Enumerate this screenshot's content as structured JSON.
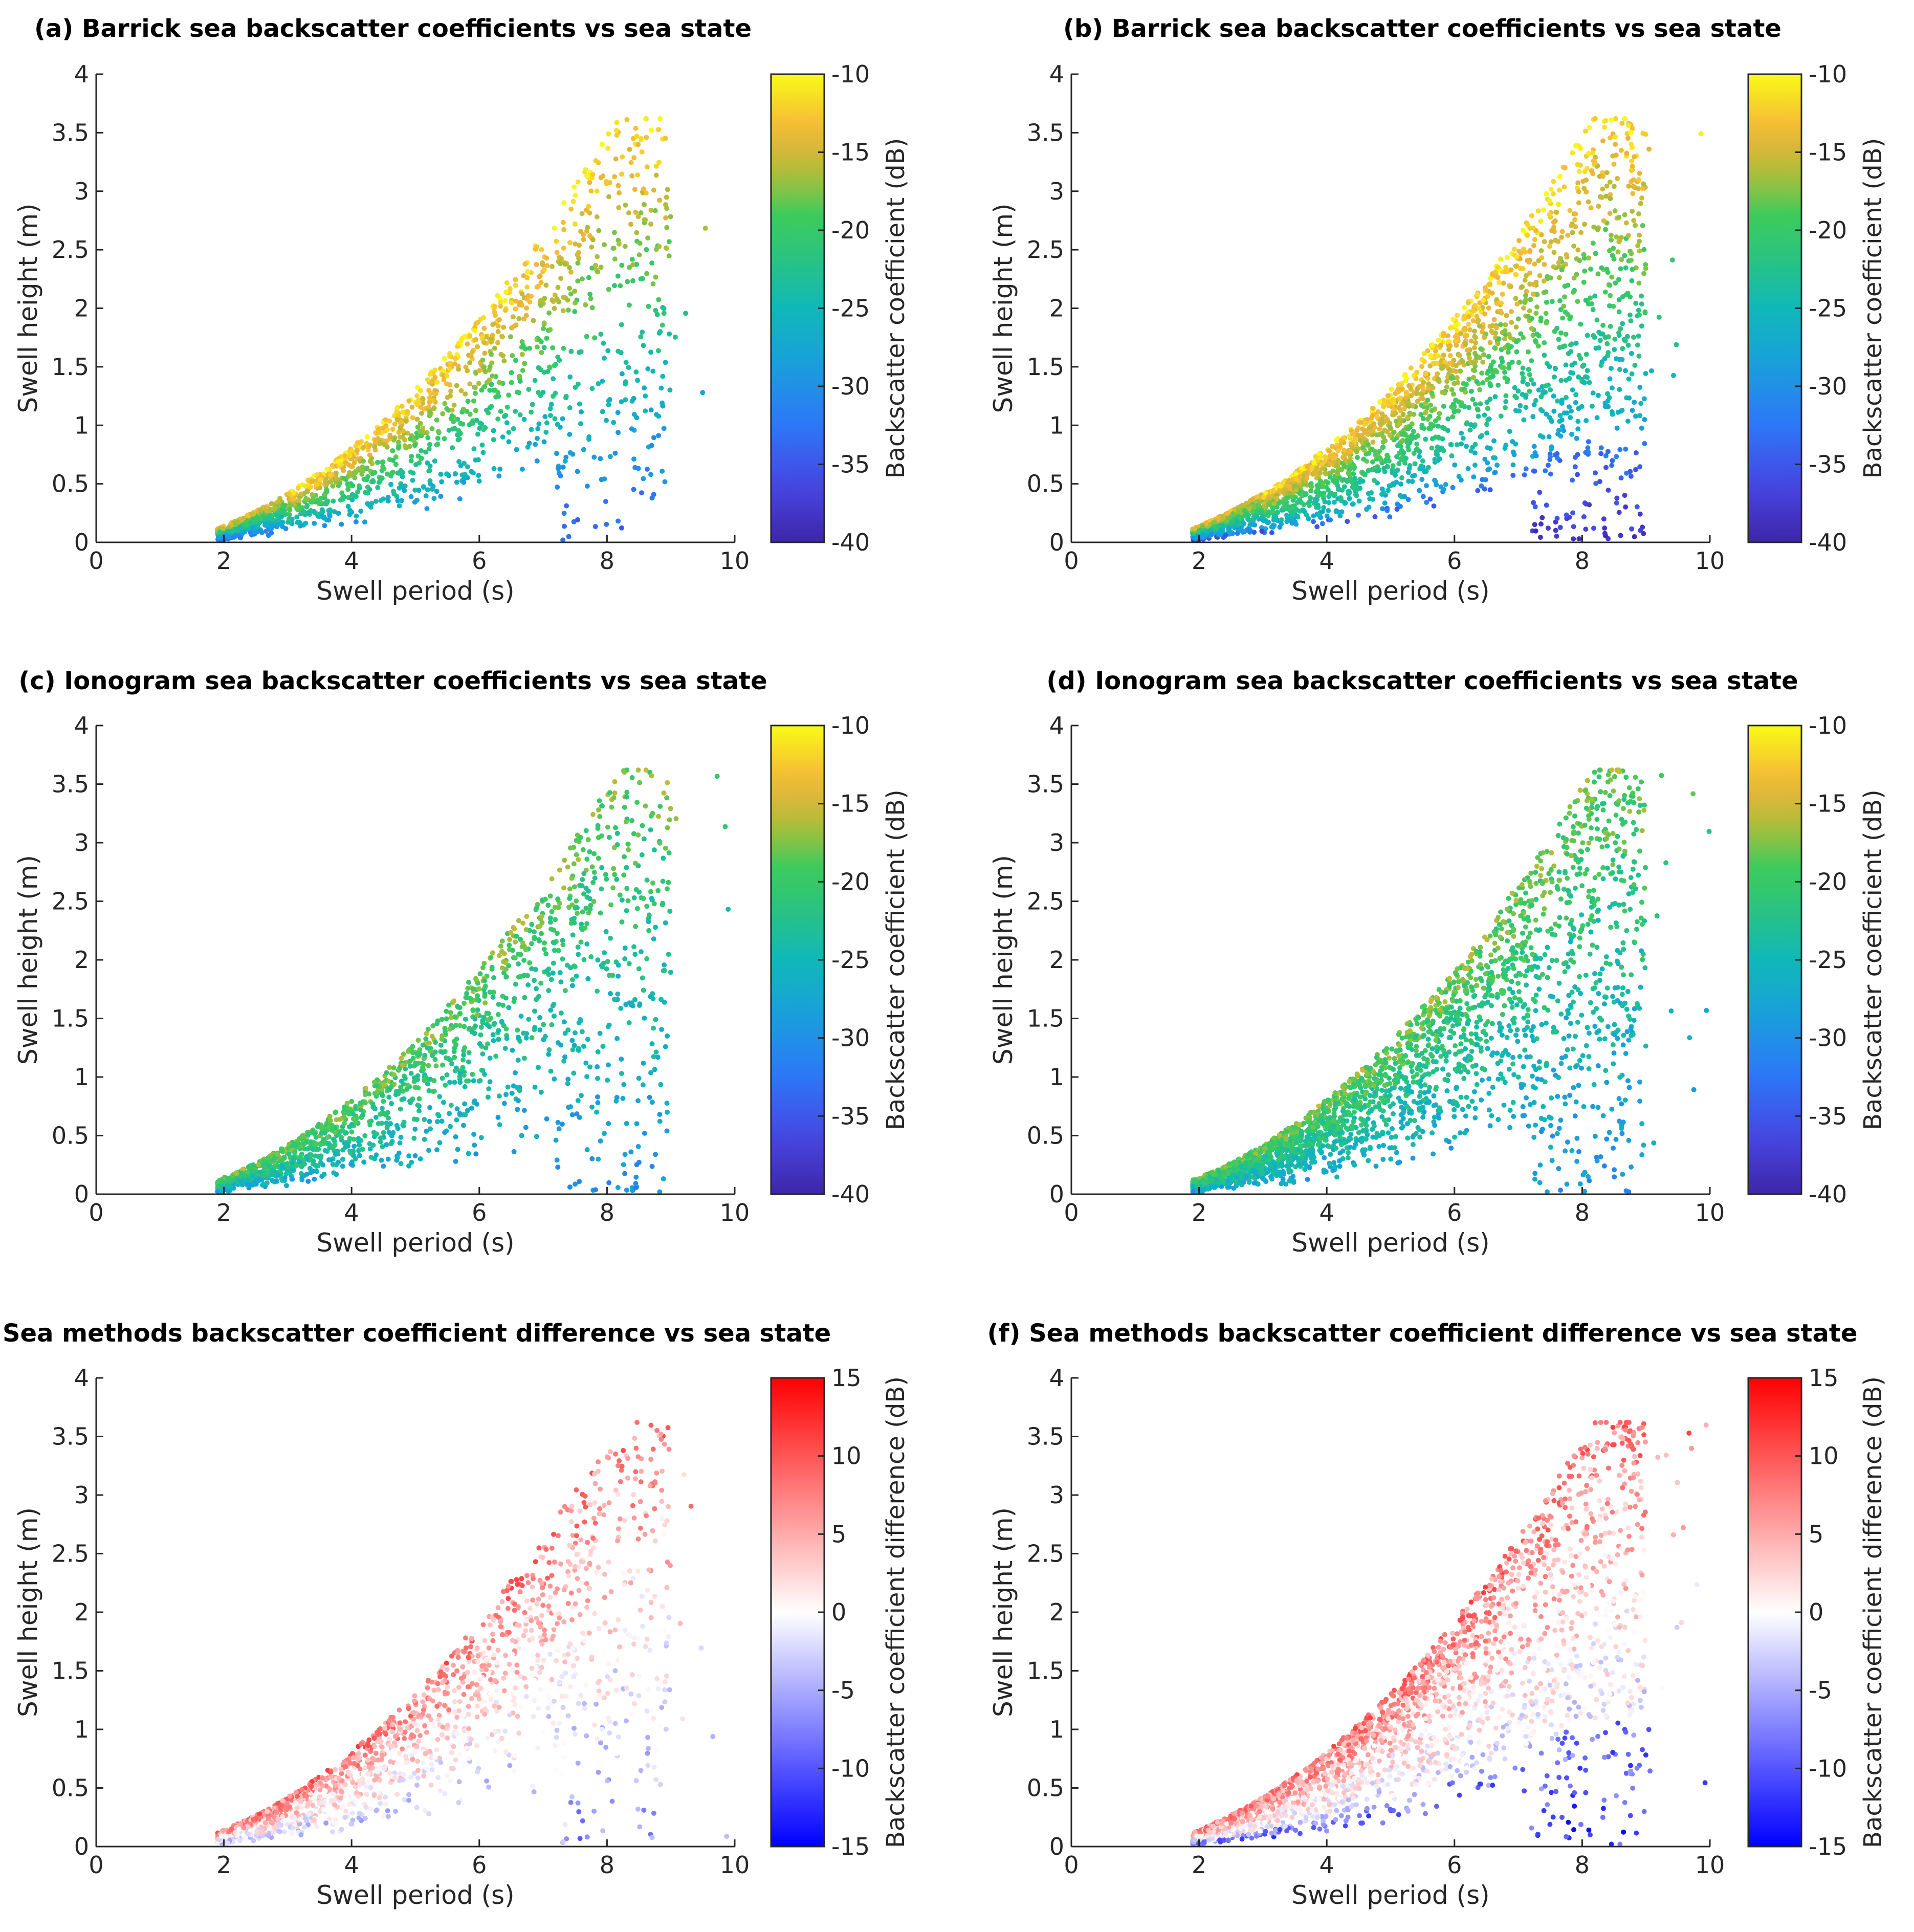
{
  "figure": {
    "xlabel": "Swell period (s)",
    "ylabel": "Swell height (m)"
  },
  "chart_data": [
    {
      "id": "a",
      "type": "scatter",
      "title": "(a) Barrick sea backscatter coefficients vs sea state",
      "xlabel": "Swell period (s)",
      "ylabel": "Swell height (m)",
      "xlim": [
        0,
        10
      ],
      "ylim": [
        0,
        4
      ],
      "xticks": [
        "0",
        "2",
        "4",
        "6",
        "8",
        "10"
      ],
      "yticks": [
        "0",
        "0.5",
        "1",
        "1.5",
        "2",
        "2.5",
        "3",
        "3.5",
        "4"
      ],
      "colorbar": {
        "label": "Backscatter coefficient (dB)",
        "range": [
          -40,
          -10
        ],
        "ticks": [
          "-10",
          "-15",
          "-20",
          "-25",
          "-30",
          "-35",
          "-40"
        ],
        "colormap": "parula"
      },
      "color_model": "barrick_sparse",
      "points": 1600
    },
    {
      "id": "b",
      "type": "scatter",
      "title": "(b) Barrick sea backscatter coefficients vs sea state",
      "xlabel": "Swell period (s)",
      "ylabel": "Swell height (m)",
      "xlim": [
        0,
        10
      ],
      "ylim": [
        0,
        4
      ],
      "xticks": [
        "0",
        "2",
        "4",
        "6",
        "8",
        "10"
      ],
      "yticks": [
        "0",
        "0.5",
        "1",
        "1.5",
        "2",
        "2.5",
        "3",
        "3.5",
        "4"
      ],
      "colorbar": {
        "label": "Backscatter coefficient (dB)",
        "range": [
          -40,
          -10
        ],
        "ticks": [
          "-10",
          "-15",
          "-20",
          "-25",
          "-30",
          "-35",
          "-40"
        ],
        "colormap": "parula"
      },
      "color_model": "barrick_dense",
      "points": 2600
    },
    {
      "id": "c",
      "type": "scatter",
      "title": "(c) Ionogram sea backscatter coefficients vs sea state",
      "xlabel": "Swell period (s)",
      "ylabel": "Swell height (m)",
      "xlim": [
        0,
        10
      ],
      "ylim": [
        0,
        4
      ],
      "xticks": [
        "0",
        "2",
        "4",
        "6",
        "8",
        "10"
      ],
      "yticks": [
        "0",
        "0.5",
        "1",
        "1.5",
        "2",
        "2.5",
        "3",
        "3.5",
        "4"
      ],
      "colorbar": {
        "label": "Backscatter coefficient (dB)",
        "range": [
          -40,
          -10
        ],
        "ticks": [
          "-10",
          "-15",
          "-20",
          "-25",
          "-30",
          "-35",
          "-40"
        ],
        "colormap": "parula"
      },
      "color_model": "ionogram",
      "points": 1600
    },
    {
      "id": "d",
      "type": "scatter",
      "title": "(d) Ionogram sea backscatter coefficients vs sea state",
      "xlabel": "Swell period (s)",
      "ylabel": "Swell height (m)",
      "xlim": [
        0,
        10
      ],
      "ylim": [
        0,
        4
      ],
      "xticks": [
        "0",
        "2",
        "4",
        "6",
        "8",
        "10"
      ],
      "yticks": [
        "0",
        "0.5",
        "1",
        "1.5",
        "2",
        "2.5",
        "3",
        "3.5",
        "4"
      ],
      "colorbar": {
        "label": "Backscatter coefficient (dB)",
        "range": [
          -40,
          -10
        ],
        "ticks": [
          "-10",
          "-15",
          "-20",
          "-25",
          "-30",
          "-35",
          "-40"
        ],
        "colormap": "parula"
      },
      "color_model": "ionogram",
      "points": 2600
    },
    {
      "id": "e",
      "type": "scatter",
      "title": "(e) Sea methods backscatter coefficient difference vs sea state",
      "xlabel": "Swell period (s)",
      "ylabel": "Swell height (m)",
      "xlim": [
        0,
        10
      ],
      "ylim": [
        0,
        4
      ],
      "xticks": [
        "0",
        "2",
        "4",
        "6",
        "8",
        "10"
      ],
      "yticks": [
        "0",
        "0.5",
        "1",
        "1.5",
        "2",
        "2.5",
        "3",
        "3.5",
        "4"
      ],
      "colorbar": {
        "label": "Backscatter coefficient difference (dB)",
        "range": [
          -15,
          15
        ],
        "ticks": [
          "15",
          "10",
          "5",
          "0",
          "-5",
          "-10",
          "-15"
        ],
        "colormap": "blue-white-red"
      },
      "color_model": "difference_sparse",
      "points": 1600
    },
    {
      "id": "f",
      "type": "scatter",
      "title": "(f) Sea methods backscatter coefficient difference vs sea state",
      "xlabel": "Swell period (s)",
      "ylabel": "Swell height (m)",
      "xlim": [
        0,
        10
      ],
      "ylim": [
        0,
        4
      ],
      "xticks": [
        "0",
        "2",
        "4",
        "6",
        "8",
        "10"
      ],
      "yticks": [
        "0",
        "0.5",
        "1",
        "1.5",
        "2",
        "2.5",
        "3",
        "3.5",
        "4"
      ],
      "colorbar": {
        "label": "Backscatter coefficient difference (dB)",
        "range": [
          -15,
          15
        ],
        "ticks": [
          "15",
          "10",
          "5",
          "0",
          "-5",
          "-10",
          "-15"
        ],
        "colormap": "blue-white-red"
      },
      "color_model": "difference_dense",
      "points": 2600
    }
  ]
}
